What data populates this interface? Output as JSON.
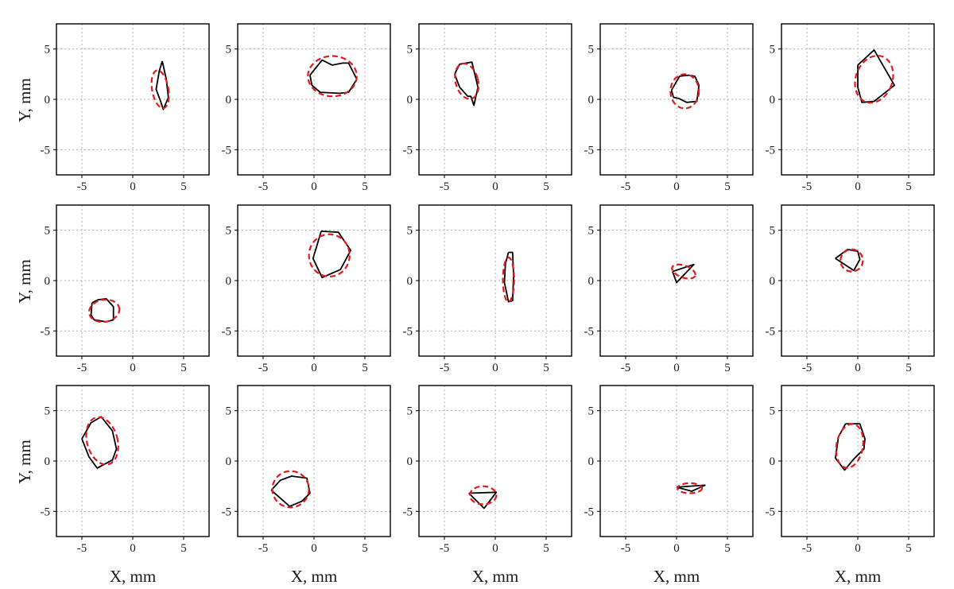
{
  "figure": {
    "type": "small-multiples",
    "rows": 3,
    "cols": 5,
    "xlabel": "X, mm",
    "ylabel": "Y, mm"
  },
  "colors": {
    "measured": "#000000",
    "fitted": "#e31a1c",
    "grid": "#b0b0b0",
    "frame": "#000000"
  },
  "chart_data": [
    {
      "type": "line",
      "xlim": [
        -7.5,
        7.5
      ],
      "ylim": [
        -7.5,
        7.5
      ],
      "xticks": [
        -5,
        0,
        5
      ],
      "yticks": [
        -5,
        0,
        5
      ],
      "series": [
        {
          "style": "solid",
          "x": [
            2.9,
            3.3,
            3.5,
            3.0,
            2.7,
            2.3,
            2.6,
            2.9
          ],
          "y": [
            3.8,
            2.0,
            0.2,
            -1.0,
            -0.1,
            1.0,
            2.8,
            3.8
          ]
        },
        {
          "style": "dashed",
          "ellipse": {
            "cx": 2.7,
            "cy": 1.0,
            "rx": 0.8,
            "ry": 1.9,
            "rotation": -10
          }
        }
      ]
    },
    {
      "type": "line",
      "xlim": [
        -7.5,
        7.5
      ],
      "ylim": [
        -7.5,
        7.5
      ],
      "xticks": [
        -5,
        0,
        5
      ],
      "yticks": [
        -5,
        0,
        5
      ],
      "series": [
        {
          "style": "solid",
          "x": [
            -0.4,
            0.8,
            1.4,
            1.8,
            2.8,
            3.4,
            4.2,
            3.4,
            2.5,
            0.6,
            -0.2,
            -0.4
          ],
          "y": [
            2.4,
            3.9,
            3.6,
            3.4,
            3.6,
            3.6,
            2.0,
            0.7,
            0.6,
            0.7,
            1.4,
            2.4
          ]
        },
        {
          "style": "dashed",
          "ellipse": {
            "cx": 1.8,
            "cy": 2.3,
            "rx": 2.4,
            "ry": 2.0,
            "rotation": 0
          }
        }
      ]
    },
    {
      "type": "line",
      "xlim": [
        -7.5,
        7.5
      ],
      "ylim": [
        -7.5,
        7.5
      ],
      "xticks": [
        -5,
        0,
        5
      ],
      "yticks": [
        -5,
        0,
        5
      ],
      "series": [
        {
          "style": "solid",
          "x": [
            -4.0,
            -3.5,
            -2.3,
            -1.7,
            -2.1,
            -2.4,
            -2.7,
            -3.5,
            -4.0
          ],
          "y": [
            2.5,
            3.5,
            3.7,
            1.2,
            -0.6,
            0.3,
            0.3,
            1.2,
            2.5
          ]
        },
        {
          "style": "dashed",
          "ellipse": {
            "cx": -2.8,
            "cy": 1.8,
            "rx": 1.1,
            "ry": 1.8,
            "rotation": -15
          }
        }
      ]
    },
    {
      "type": "line",
      "xlim": [
        -7.5,
        7.5
      ],
      "ylim": [
        -7.5,
        7.5
      ],
      "xticks": [
        -5,
        0,
        5
      ],
      "yticks": [
        -5,
        0,
        5
      ],
      "series": [
        {
          "style": "solid",
          "x": [
            -0.5,
            0.3,
            1.2,
            1.8,
            2.2,
            2.0,
            1.0,
            0.2,
            -0.3,
            -0.5
          ],
          "y": [
            0.9,
            2.3,
            2.4,
            2.3,
            1.4,
            -0.2,
            -0.3,
            0.1,
            0.2,
            0.9
          ]
        },
        {
          "style": "dashed",
          "ellipse": {
            "cx": 0.8,
            "cy": 0.8,
            "rx": 1.4,
            "ry": 1.7,
            "rotation": 0
          }
        }
      ]
    },
    {
      "type": "line",
      "xlim": [
        -7.5,
        7.5
      ],
      "ylim": [
        -7.5,
        7.5
      ],
      "xticks": [
        -5,
        0,
        5
      ],
      "yticks": [
        -5,
        0,
        5
      ],
      "series": [
        {
          "style": "solid",
          "x": [
            0.0,
            1.6,
            3.6,
            1.6,
            0.4,
            0.0,
            0.0
          ],
          "y": [
            3.4,
            4.9,
            1.4,
            -0.2,
            -0.3,
            1.2,
            3.4
          ]
        },
        {
          "style": "dashed",
          "ellipse": {
            "cx": 1.6,
            "cy": 2.0,
            "rx": 1.8,
            "ry": 2.4,
            "rotation": 20
          }
        }
      ]
    },
    {
      "type": "line",
      "xlim": [
        -7.5,
        7.5
      ],
      "ylim": [
        -7.5,
        7.5
      ],
      "xticks": [
        -5,
        0,
        5
      ],
      "yticks": [
        -5,
        0,
        5
      ],
      "series": [
        {
          "style": "solid",
          "x": [
            -4.0,
            -3.4,
            -2.6,
            -1.9,
            -1.9,
            -2.6,
            -3.8,
            -4.1,
            -4.0
          ],
          "y": [
            -2.2,
            -1.9,
            -1.8,
            -2.6,
            -3.9,
            -4.1,
            -3.9,
            -3.4,
            -2.2
          ]
        },
        {
          "style": "dashed",
          "ellipse": {
            "cx": -2.8,
            "cy": -3.0,
            "rx": 1.5,
            "ry": 1.1,
            "rotation": -10
          }
        }
      ]
    },
    {
      "type": "line",
      "xlim": [
        -7.5,
        7.5
      ],
      "ylim": [
        -7.5,
        7.5
      ],
      "xticks": [
        -5,
        0,
        5
      ],
      "yticks": [
        -5,
        0,
        5
      ],
      "series": [
        {
          "style": "solid",
          "x": [
            0.7,
            2.4,
            3.6,
            2.6,
            0.8,
            -0.1,
            0.2,
            0.7
          ],
          "y": [
            4.9,
            4.8,
            3.0,
            1.1,
            0.3,
            2.2,
            3.2,
            4.9
          ]
        },
        {
          "style": "dashed",
          "ellipse": {
            "cx": 1.5,
            "cy": 2.5,
            "rx": 2.0,
            "ry": 2.1,
            "rotation": 0
          }
        }
      ]
    },
    {
      "type": "line",
      "xlim": [
        -7.5,
        7.5
      ],
      "ylim": [
        -7.5,
        7.5
      ],
      "xticks": [
        -5,
        0,
        5
      ],
      "yticks": [
        -5,
        0,
        5
      ],
      "series": [
        {
          "style": "solid",
          "x": [
            1.3,
            1.7,
            1.8,
            1.7,
            1.3,
            0.9,
            1.0,
            1.3
          ],
          "y": [
            2.8,
            2.8,
            0.5,
            -2.0,
            -2.1,
            -0.2,
            1.7,
            2.8
          ]
        },
        {
          "style": "dashed",
          "ellipse": {
            "cx": 1.3,
            "cy": 0.1,
            "rx": 0.55,
            "ry": 2.2,
            "rotation": 0
          }
        }
      ]
    },
    {
      "type": "line",
      "xlim": [
        -7.5,
        7.5
      ],
      "ylim": [
        -7.5,
        7.5
      ],
      "xticks": [
        -5,
        0,
        5
      ],
      "yticks": [
        -5,
        0,
        5
      ],
      "series": [
        {
          "style": "solid",
          "x": [
            -0.4,
            1.7,
            0.0,
            -0.4
          ],
          "y": [
            0.9,
            1.6,
            -0.2,
            0.9
          ]
        },
        {
          "style": "dashed",
          "ellipse": {
            "cx": 0.7,
            "cy": 0.9,
            "rx": 1.2,
            "ry": 0.6,
            "rotation": 20
          }
        }
      ]
    },
    {
      "type": "line",
      "xlim": [
        -7.5,
        7.5
      ],
      "ylim": [
        -7.5,
        7.5
      ],
      "xticks": [
        -5,
        0,
        5
      ],
      "yticks": [
        -5,
        0,
        5
      ],
      "series": [
        {
          "style": "solid",
          "x": [
            -2.2,
            -1.0,
            0.0,
            0.2,
            -0.4,
            -1.3,
            -2.2
          ],
          "y": [
            2.2,
            3.1,
            2.9,
            2.1,
            1.0,
            1.6,
            2.2
          ]
        },
        {
          "style": "dashed",
          "ellipse": {
            "cx": -0.6,
            "cy": 2.0,
            "rx": 1.1,
            "ry": 1.1,
            "rotation": 0
          }
        }
      ]
    },
    {
      "type": "line",
      "xlim": [
        -7.5,
        7.5
      ],
      "ylim": [
        -7.5,
        7.5
      ],
      "xticks": [
        -5,
        0,
        5
      ],
      "yticks": [
        -5,
        0,
        5
      ],
      "series": [
        {
          "style": "solid",
          "x": [
            -5.0,
            -4.1,
            -3.1,
            -2.0,
            -1.6,
            -2.0,
            -3.5,
            -4.3,
            -5.0
          ],
          "y": [
            2.2,
            3.8,
            4.4,
            3.0,
            1.2,
            0.1,
            -0.7,
            0.4,
            2.2
          ]
        },
        {
          "style": "dashed",
          "ellipse": {
            "cx": -3.0,
            "cy": 2.0,
            "rx": 1.5,
            "ry": 2.4,
            "rotation": -15
          }
        }
      ]
    },
    {
      "type": "line",
      "xlim": [
        -7.5,
        7.5
      ],
      "ylim": [
        -7.5,
        7.5
      ],
      "xticks": [
        -5,
        0,
        5
      ],
      "yticks": [
        -5,
        0,
        5
      ],
      "series": [
        {
          "style": "solid",
          "x": [
            -4.2,
            -3.3,
            -2.2,
            -0.7,
            -0.4,
            -1.2,
            -2.4,
            -4.2
          ],
          "y": [
            -2.9,
            -1.9,
            -1.5,
            -1.7,
            -3.2,
            -4.0,
            -4.5,
            -2.9
          ]
        },
        {
          "style": "dashed",
          "ellipse": {
            "cx": -2.3,
            "cy": -2.8,
            "rx": 1.8,
            "ry": 1.8,
            "rotation": 0
          }
        }
      ]
    },
    {
      "type": "line",
      "xlim": [
        -7.5,
        7.5
      ],
      "ylim": [
        -7.5,
        7.5
      ],
      "xticks": [
        -5,
        0,
        5
      ],
      "yticks": [
        -5,
        0,
        5
      ],
      "series": [
        {
          "style": "solid",
          "x": [
            -2.6,
            0.1,
            -1.1,
            -2.6
          ],
          "y": [
            -3.2,
            -3.1,
            -4.7,
            -3.2
          ]
        },
        {
          "style": "dashed",
          "ellipse": {
            "cx": -1.2,
            "cy": -3.4,
            "rx": 1.3,
            "ry": 0.9,
            "rotation": 0
          }
        }
      ]
    },
    {
      "type": "line",
      "xlim": [
        -7.5,
        7.5
      ],
      "ylim": [
        -7.5,
        7.5
      ],
      "xticks": [
        -5,
        0,
        5
      ],
      "yticks": [
        -5,
        0,
        5
      ],
      "series": [
        {
          "style": "solid",
          "x": [
            0.0,
            2.8,
            1.5,
            0.0
          ],
          "y": [
            -2.6,
            -2.4,
            -3.0,
            -2.6
          ]
        },
        {
          "style": "dashed",
          "ellipse": {
            "cx": 1.3,
            "cy": -2.7,
            "rx": 1.2,
            "ry": 0.5,
            "rotation": 0
          }
        }
      ]
    },
    {
      "type": "line",
      "xlim": [
        -7.5,
        7.5
      ],
      "ylim": [
        -7.5,
        7.5
      ],
      "xticks": [
        -5,
        0,
        5
      ],
      "yticks": [
        -5,
        0,
        5
      ],
      "series": [
        {
          "style": "solid",
          "x": [
            -1.2,
            0.2,
            0.7,
            0.6,
            -0.4,
            -1.3,
            -2.2,
            -1.9,
            -1.2
          ],
          "y": [
            3.7,
            3.7,
            2.2,
            1.2,
            0.2,
            -0.9,
            0.3,
            2.4,
            3.7
          ]
        },
        {
          "style": "dashed",
          "ellipse": {
            "cx": -0.8,
            "cy": 1.5,
            "rx": 1.3,
            "ry": 2.2,
            "rotation": 10
          }
        }
      ]
    }
  ]
}
